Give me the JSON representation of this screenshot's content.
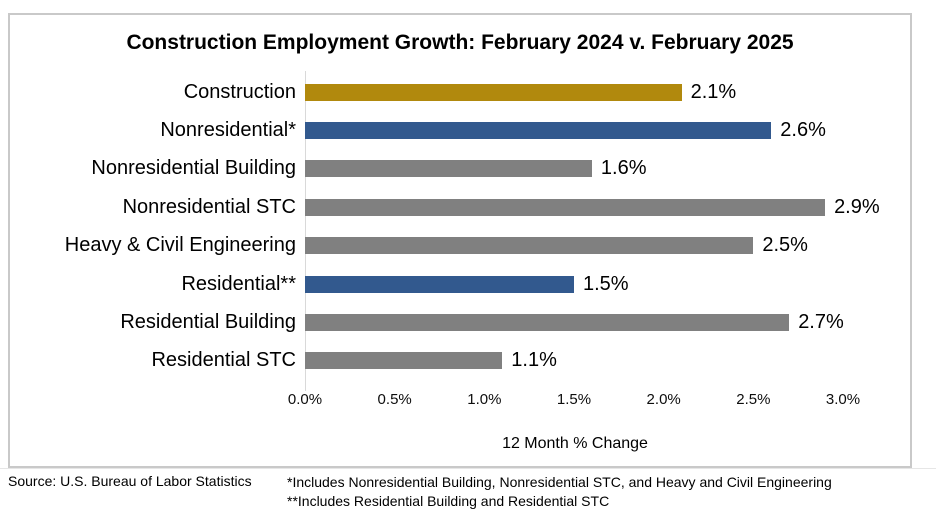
{
  "chart_data": {
    "type": "bar",
    "orientation": "horizontal",
    "title": "Construction Employment Growth: February 2024 v. February 2025",
    "xlabel": "12 Month % Change",
    "categories": [
      "Construction",
      "Nonresidential*",
      "Nonresidential Building",
      "Nonresidential STC",
      "Heavy & Civil Engineering",
      "Residential**",
      "Residential Building",
      "Residential STC"
    ],
    "values": [
      2.1,
      2.6,
      1.6,
      2.9,
      2.5,
      1.5,
      2.7,
      1.1
    ],
    "data_labels": [
      "2.1%",
      "2.6%",
      "1.6%",
      "2.9%",
      "2.5%",
      "1.5%",
      "2.7%",
      "1.1%"
    ],
    "bar_colors": [
      "#b1890d",
      "#32598e",
      "#808080",
      "#808080",
      "#808080",
      "#32598e",
      "#808080",
      "#808080"
    ],
    "x_ticks": [
      "0.0%",
      "0.5%",
      "1.0%",
      "1.5%",
      "2.0%",
      "2.5%",
      "3.0%"
    ],
    "x_tick_values": [
      0.0,
      0.5,
      1.0,
      1.5,
      2.0,
      2.5,
      3.0
    ],
    "xlim": [
      0.0,
      3.0
    ],
    "grid": false,
    "legend": false
  },
  "colors": {
    "accent_gold": "#b1890d",
    "accent_blue": "#32598e",
    "neutral_gray": "#808080",
    "axis_line": "#d9d9d9",
    "chart_border": "#c9c9c9"
  },
  "footer": {
    "source": "Source:  U.S. Bureau of Labor Statistics",
    "footnote1": "*Includes Nonresidential Building, Nonresidential STC, and Heavy and Civil Engineering",
    "footnote2": "**Includes Residential Building and Residential STC"
  }
}
